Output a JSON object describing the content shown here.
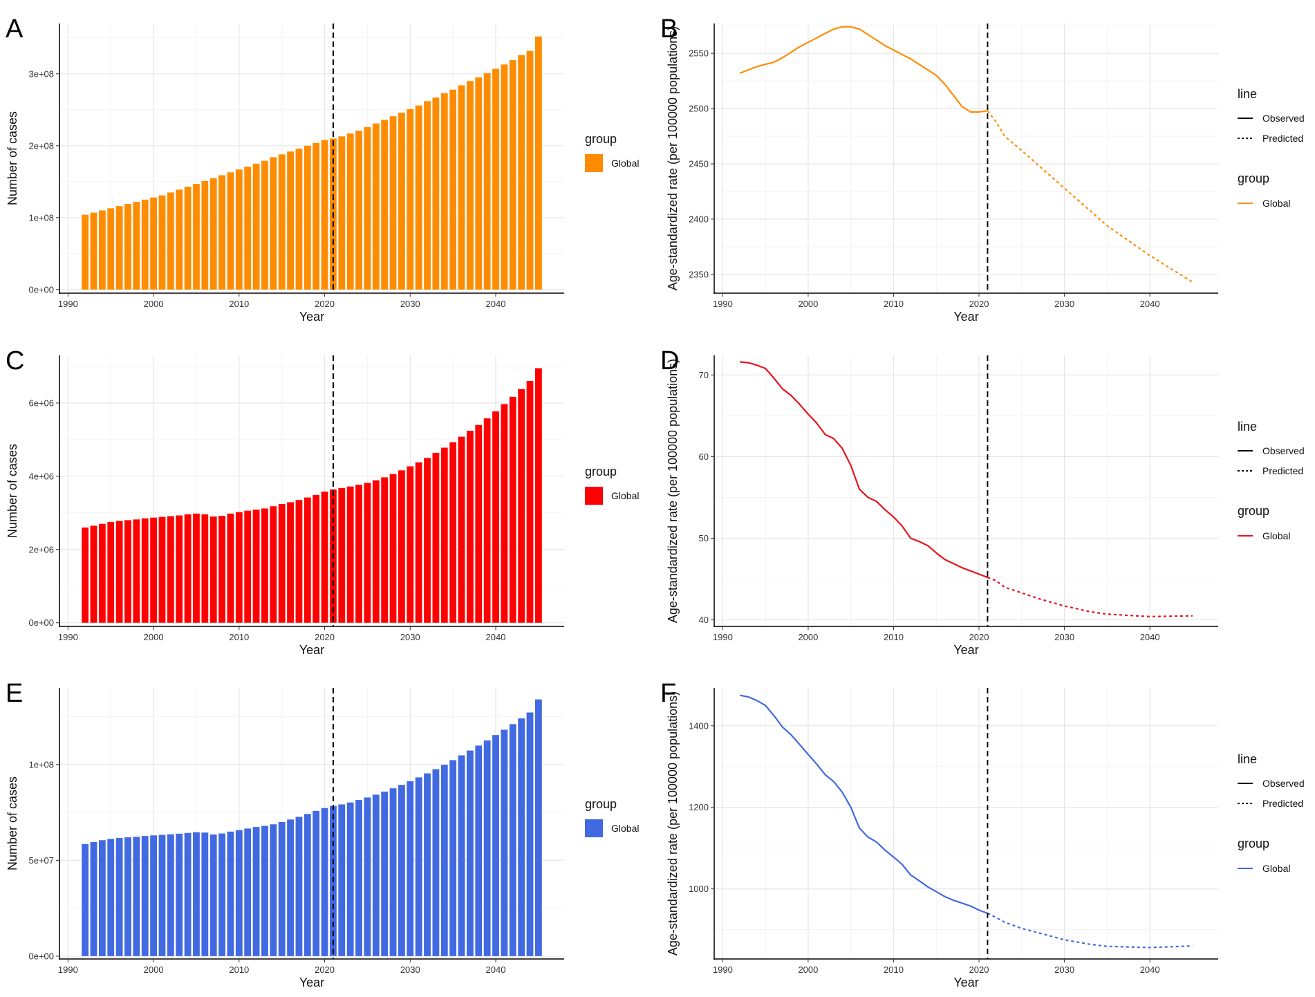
{
  "chart_data": [
    {
      "panel": "A",
      "type": "bar",
      "xlabel": "Year",
      "ylabel": "Number of cases",
      "color": "#FF8C00",
      "xlim": [
        1989,
        2048
      ],
      "ylim": [
        -5000000,
        370000000
      ],
      "xticks": [
        1990,
        2000,
        2010,
        2020,
        2030,
        2040
      ],
      "yticks": [
        {
          "value": 0,
          "label": "0e+00"
        },
        {
          "value": 100000000,
          "label": "1e+08"
        },
        {
          "value": 200000000,
          "label": "2e+08"
        },
        {
          "value": 300000000,
          "label": "3e+08"
        }
      ],
      "vline": 2021,
      "grid": true,
      "legend": {
        "title": "group",
        "items": [
          "Global"
        ]
      },
      "x": [
        1992,
        1993,
        1994,
        1995,
        1996,
        1997,
        1998,
        1999,
        2000,
        2001,
        2002,
        2003,
        2004,
        2005,
        2006,
        2007,
        2008,
        2009,
        2010,
        2011,
        2012,
        2013,
        2014,
        2015,
        2016,
        2017,
        2018,
        2019,
        2020,
        2021,
        2022,
        2023,
        2024,
        2025,
        2026,
        2027,
        2028,
        2029,
        2030,
        2031,
        2032,
        2033,
        2034,
        2035,
        2036,
        2037,
        2038,
        2039,
        2040,
        2041,
        2042,
        2043,
        2044,
        2045
      ],
      "values": [
        104000000,
        107000000,
        110000000,
        113000000,
        116000000,
        119000000,
        122000000,
        125000000,
        128000000,
        131000000,
        135000000,
        139000000,
        143000000,
        147000000,
        151000000,
        155000000,
        159000000,
        163000000,
        167000000,
        171000000,
        175000000,
        179000000,
        184000000,
        188000000,
        192000000,
        196000000,
        200000000,
        204000000,
        208000000,
        210000000,
        213000000,
        217000000,
        221000000,
        226000000,
        231000000,
        236000000,
        241000000,
        246000000,
        251000000,
        256000000,
        262000000,
        267000000,
        273000000,
        278000000,
        284000000,
        290000000,
        295000000,
        301000000,
        307000000,
        313000000,
        319000000,
        326000000,
        332000000,
        352000000
      ]
    },
    {
      "panel": "B",
      "type": "line",
      "xlabel": "Year",
      "ylabel": "Age-standardized rate (per 100000 populations)",
      "color": "#FF8C00",
      "xlim": [
        1989,
        2048
      ],
      "ylim": [
        2333,
        2577
      ],
      "xticks": [
        1990,
        2000,
        2010,
        2020,
        2030,
        2040
      ],
      "yticks": [
        {
          "value": 2350,
          "label": "2350"
        },
        {
          "value": 2400,
          "label": "2400"
        },
        {
          "value": 2450,
          "label": "2450"
        },
        {
          "value": 2500,
          "label": "2500"
        },
        {
          "value": 2550,
          "label": "2550"
        }
      ],
      "vline": 2021,
      "grid": true,
      "legend": {
        "line_title": "line",
        "line_items": [
          "Observed",
          "Predicted"
        ],
        "group_title": "group",
        "group_items": [
          "Global"
        ]
      },
      "observed": {
        "x": [
          1992,
          1993,
          1994,
          1995,
          1996,
          1997,
          1998,
          1999,
          2000,
          2001,
          2002,
          2003,
          2004,
          2005,
          2006,
          2007,
          2008,
          2009,
          2010,
          2011,
          2012,
          2013,
          2014,
          2015,
          2016,
          2017,
          2018,
          2019,
          2020,
          2021
        ],
        "y": [
          2532,
          2535,
          2538,
          2540,
          2542,
          2546,
          2551,
          2556,
          2560,
          2564,
          2568,
          2572,
          2574,
          2574,
          2572,
          2567,
          2562,
          2557,
          2553,
          2549,
          2545,
          2540,
          2535,
          2530,
          2522,
          2512,
          2502,
          2497,
          2497,
          2498
        ]
      },
      "predicted": {
        "x": [
          2021,
          2022,
          2023,
          2025,
          2030,
          2035,
          2040,
          2045
        ],
        "y": [
          2498,
          2488,
          2475,
          2462,
          2428,
          2394,
          2367,
          2343
        ]
      }
    },
    {
      "panel": "C",
      "type": "bar",
      "xlabel": "Year",
      "ylabel": "Number of cases",
      "color": "#FF0000",
      "xlim": [
        1989,
        2048
      ],
      "ylim": [
        -100000,
        7300000
      ],
      "xticks": [
        1990,
        2000,
        2010,
        2020,
        2030,
        2040
      ],
      "yticks": [
        {
          "value": 0,
          "label": "0e+00"
        },
        {
          "value": 2000000,
          "label": "2e+06"
        },
        {
          "value": 4000000,
          "label": "4e+06"
        },
        {
          "value": 6000000,
          "label": "6e+06"
        }
      ],
      "vline": 2021,
      "grid": true,
      "legend": {
        "title": "group",
        "items": [
          "Global"
        ]
      },
      "x": [
        1992,
        1993,
        1994,
        1995,
        1996,
        1997,
        1998,
        1999,
        2000,
        2001,
        2002,
        2003,
        2004,
        2005,
        2006,
        2007,
        2008,
        2009,
        2010,
        2011,
        2012,
        2013,
        2014,
        2015,
        2016,
        2017,
        2018,
        2019,
        2020,
        2021,
        2022,
        2023,
        2024,
        2025,
        2026,
        2027,
        2028,
        2029,
        2030,
        2031,
        2032,
        2033,
        2034,
        2035,
        2036,
        2037,
        2038,
        2039,
        2040,
        2041,
        2042,
        2043,
        2044,
        2045
      ],
      "values": [
        2600000,
        2650000,
        2700000,
        2750000,
        2780000,
        2800000,
        2820000,
        2850000,
        2870000,
        2890000,
        2910000,
        2930000,
        2960000,
        2980000,
        2960000,
        2900000,
        2920000,
        2980000,
        3020000,
        3060000,
        3090000,
        3120000,
        3180000,
        3240000,
        3290000,
        3350000,
        3420000,
        3490000,
        3580000,
        3640000,
        3680000,
        3720000,
        3770000,
        3820000,
        3890000,
        3970000,
        4060000,
        4160000,
        4270000,
        4380000,
        4500000,
        4640000,
        4780000,
        4930000,
        5080000,
        5240000,
        5400000,
        5580000,
        5770000,
        5970000,
        6170000,
        6380000,
        6600000,
        6950000
      ]
    },
    {
      "panel": "D",
      "type": "line",
      "xlabel": "Year",
      "ylabel": "Age-standardized rate (per 100000 populations)",
      "color": "#E8131B",
      "xlim": [
        1989,
        2048
      ],
      "ylim": [
        39.2,
        72.4
      ],
      "xticks": [
        1990,
        2000,
        2010,
        2020,
        2030,
        2040
      ],
      "yticks": [
        {
          "value": 40,
          "label": "40"
        },
        {
          "value": 50,
          "label": "50"
        },
        {
          "value": 60,
          "label": "60"
        },
        {
          "value": 70,
          "label": "70"
        }
      ],
      "vline": 2021,
      "grid": true,
      "legend": {
        "line_title": "line",
        "line_items": [
          "Observed",
          "Predicted"
        ],
        "group_title": "group",
        "group_items": [
          "Global"
        ]
      },
      "observed": {
        "x": [
          1992,
          1993,
          1994,
          1995,
          1996,
          1997,
          1998,
          1999,
          2000,
          2001,
          2002,
          2003,
          2004,
          2005,
          2006,
          2007,
          2008,
          2009,
          2010,
          2011,
          2012,
          2013,
          2014,
          2015,
          2016,
          2017,
          2018,
          2019,
          2020,
          2021
        ],
        "y": [
          71.6,
          71.5,
          71.2,
          70.8,
          69.6,
          68.3,
          67.5,
          66.4,
          65.2,
          64.1,
          62.7,
          62.2,
          61.0,
          58.9,
          56.0,
          55.0,
          54.5,
          53.5,
          52.6,
          51.5,
          50.0,
          49.6,
          49.1,
          48.2,
          47.4,
          46.9,
          46.4,
          46.0,
          45.6,
          45.2
        ]
      },
      "predicted": {
        "x": [
          2021,
          2022,
          2023,
          2025,
          2027,
          2030,
          2033,
          2035,
          2040,
          2045
        ],
        "y": [
          45.2,
          44.8,
          44.0,
          43.3,
          42.6,
          41.7,
          41.0,
          40.7,
          40.4,
          40.5
        ]
      }
    },
    {
      "panel": "E",
      "type": "bar",
      "xlabel": "Year",
      "ylabel": "Number of cases",
      "color": "#4169E1",
      "xlim": [
        1989,
        2048
      ],
      "ylim": [
        -1500000,
        140000000
      ],
      "xticks": [
        1990,
        2000,
        2010,
        2020,
        2030,
        2040
      ],
      "yticks": [
        {
          "value": 0,
          "label": "0e+00"
        },
        {
          "value": 50000000,
          "label": "5e+07"
        },
        {
          "value": 100000000,
          "label": "1e+08"
        }
      ],
      "vline": 2021,
      "grid": true,
      "legend": {
        "title": "group",
        "items": [
          "Global"
        ]
      },
      "x": [
        1992,
        1993,
        1994,
        1995,
        1996,
        1997,
        1998,
        1999,
        2000,
        2001,
        2002,
        2003,
        2004,
        2005,
        2006,
        2007,
        2008,
        2009,
        2010,
        2011,
        2012,
        2013,
        2014,
        2015,
        2016,
        2017,
        2018,
        2019,
        2020,
        2021,
        2022,
        2023,
        2024,
        2025,
        2026,
        2027,
        2028,
        2029,
        2030,
        2031,
        2032,
        2033,
        2034,
        2035,
        2036,
        2037,
        2038,
        2039,
        2040,
        2041,
        2042,
        2043,
        2044,
        2045
      ],
      "values": [
        58500000,
        59500000,
        60500000,
        61200000,
        61700000,
        62000000,
        62300000,
        62700000,
        63000000,
        63300000,
        63600000,
        63900000,
        64300000,
        64700000,
        64500000,
        63500000,
        64000000,
        65000000,
        65800000,
        66600000,
        67400000,
        68000000,
        68800000,
        70000000,
        71300000,
        72700000,
        74200000,
        75800000,
        77300000,
        78400000,
        79200000,
        80200000,
        81500000,
        82800000,
        84300000,
        85900000,
        87600000,
        89400000,
        91300000,
        93300000,
        95400000,
        97600000,
        99900000,
        102300000,
        104800000,
        107300000,
        109900000,
        112600000,
        115400000,
        118200000,
        121100000,
        124100000,
        127200000,
        134000000
      ]
    },
    {
      "panel": "F",
      "type": "line",
      "xlabel": "Year",
      "ylabel": "Age-standardized rate (per 100000 populations)",
      "color": "#4169E1",
      "xlim": [
        1989,
        2048
      ],
      "ylim": [
        828,
        1493
      ],
      "xticks": [
        1990,
        2000,
        2010,
        2020,
        2030,
        2040
      ],
      "yticks": [
        {
          "value": 1000,
          "label": "1000"
        },
        {
          "value": 1200,
          "label": "1200"
        },
        {
          "value": 1400,
          "label": "1400"
        }
      ],
      "vline": 2021,
      "grid": true,
      "legend": {
        "line_title": "line",
        "line_items": [
          "Observed",
          "Predicted"
        ],
        "group_title": "group",
        "group_items": [
          "Global"
        ]
      },
      "observed": {
        "x": [
          1992,
          1993,
          1994,
          1995,
          1996,
          1997,
          1998,
          1999,
          2000,
          2001,
          2002,
          2003,
          2004,
          2005,
          2006,
          2007,
          2008,
          2009,
          2010,
          2011,
          2012,
          2013,
          2014,
          2015,
          2016,
          2017,
          2018,
          2019,
          2020,
          2021
        ],
        "y": [
          1475,
          1471,
          1462,
          1450,
          1425,
          1397,
          1378,
          1354,
          1330,
          1306,
          1280,
          1263,
          1237,
          1200,
          1149,
          1127,
          1115,
          1095,
          1078,
          1060,
          1034,
          1020,
          1005,
          993,
          981,
          972,
          965,
          958,
          948,
          940
        ]
      },
      "predicted": {
        "x": [
          2021,
          2022,
          2023,
          2025,
          2027,
          2030,
          2033,
          2035,
          2040,
          2045
        ],
        "y": [
          940,
          930,
          918,
          903,
          892,
          875,
          864,
          859,
          856,
          860
        ]
      }
    }
  ]
}
